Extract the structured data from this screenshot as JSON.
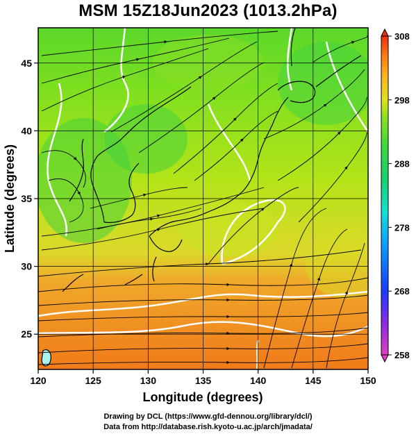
{
  "title": "MSM 15Z18Jun2023 (1013.2hPa)",
  "xaxis": {
    "label": "Longitude (degrees)",
    "range": [
      120,
      150
    ],
    "ticks": [
      120,
      125,
      130,
      135,
      140,
      145,
      150
    ]
  },
  "yaxis": {
    "label": "Latitude  (degrees)",
    "range": [
      22.4,
      47.6
    ],
    "ticks": [
      25,
      30,
      35,
      40,
      45
    ]
  },
  "colorbar": {
    "range": [
      258,
      308
    ],
    "ticks": [
      258,
      268,
      278,
      288,
      298,
      308
    ],
    "colors": [
      "#e040c0",
      "#8a2be2",
      "#1a3cff",
      "#0aa0ff",
      "#18e0d0",
      "#18d070",
      "#3cd840",
      "#90e020",
      "#e0e020",
      "#ffb020",
      "#ff7a10",
      "#e83010"
    ]
  },
  "credits": {
    "line1": "Drawing by DCL (https://www.gfd-dennou.org/library/dcl/)",
    "line2": "Data from http://database.rish.kyoto-u.ac.jp/arch/jmadata/"
  }
}
